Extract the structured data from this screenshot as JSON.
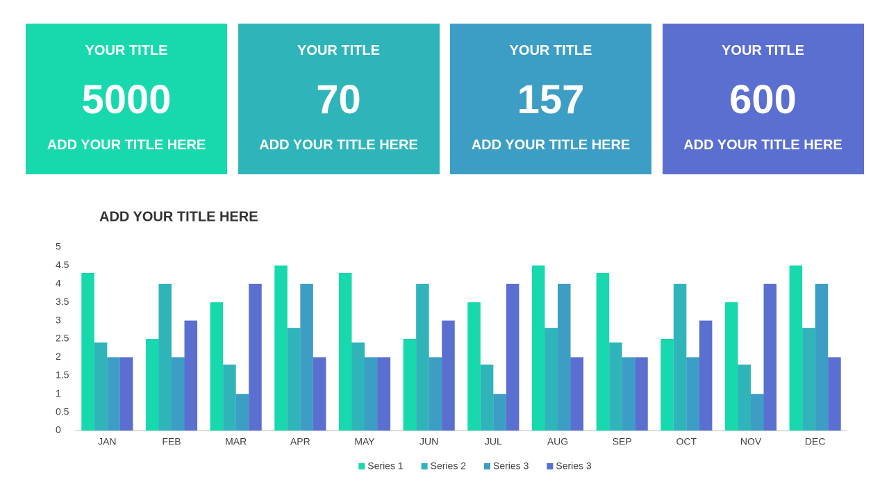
{
  "cards": [
    {
      "title": "YOUR TITLE",
      "value": 5000,
      "subtitle": "ADD YOUR TITLE HERE",
      "color": "#17d9ad"
    },
    {
      "title": "YOUR TITLE",
      "value": 70,
      "subtitle": "ADD YOUR TITLE HERE",
      "color": "#2fb5b9"
    },
    {
      "title": "YOUR TITLE",
      "value": 157,
      "subtitle": "ADD YOUR TITLE HERE",
      "color": "#3c9ec4"
    },
    {
      "title": "YOUR TITLE",
      "value": 600,
      "subtitle": "ADD YOUR TITLE HERE",
      "color": "#5a6fcf"
    }
  ],
  "chart_data": {
    "type": "bar",
    "title": "ADD YOUR TITLE HERE",
    "categories": [
      "JAN",
      "FEB",
      "MAR",
      "APR",
      "MAY",
      "JUN",
      "JUL",
      "AUG",
      "SEP",
      "OCT",
      "NOV",
      "DEC"
    ],
    "series": [
      {
        "name": "Series 1",
        "color": "#17d9ad",
        "values": [
          4.3,
          2.5,
          3.5,
          4.5,
          4.3,
          2.5,
          3.5,
          4.5,
          4.3,
          2.5,
          3.5,
          4.5
        ]
      },
      {
        "name": "Series 2",
        "color": "#2fb5b9",
        "values": [
          2.4,
          4,
          1.8,
          2.8,
          2.4,
          4,
          1.8,
          2.8,
          2.4,
          4,
          1.8,
          2.8
        ]
      },
      {
        "name": "Series 3",
        "color": "#3c9ec4",
        "values": [
          2,
          2,
          1,
          4,
          2,
          2,
          1,
          4,
          2,
          2,
          1,
          4
        ]
      },
      {
        "name": "Series 3",
        "color": "#5a6fcf",
        "values": [
          2,
          3,
          4,
          2,
          2,
          3,
          4,
          2,
          2,
          3,
          4,
          2
        ]
      }
    ],
    "ylim": [
      0,
      5
    ],
    "yticks": [
      0,
      0.5,
      1,
      1.5,
      2,
      2.5,
      3,
      3.5,
      4,
      4.5,
      5
    ],
    "grid": false,
    "legend": "bottom"
  }
}
